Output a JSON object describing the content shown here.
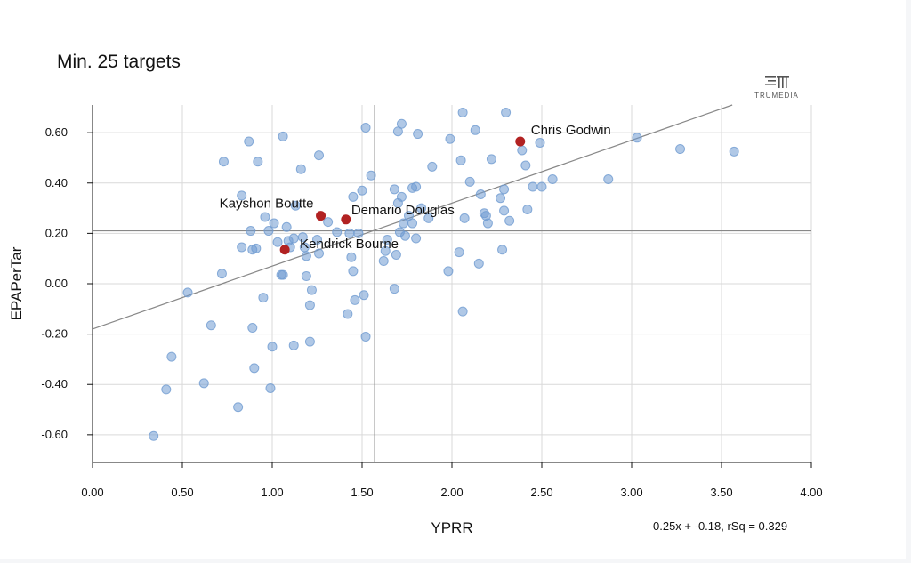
{
  "header": {
    "subtitle": "Min. 25 targets",
    "brand": "TRUMEDIA",
    "equation": "0.25x + -0.18, rSq = 0.329"
  },
  "colors": {
    "point": "#6f9bd1",
    "highlight": "#b22222",
    "grid": "#d9d9d9",
    "axis": "#111111",
    "refline": "#888888"
  },
  "chart_data": {
    "type": "scatter",
    "xlabel": "YPRR",
    "ylabel": "EPAPerTar",
    "xlim": [
      0,
      4
    ],
    "ylim": [
      -0.71,
      0.71
    ],
    "xticks": [
      "0.00",
      "0.50",
      "1.00",
      "1.50",
      "2.00",
      "2.50",
      "3.00",
      "3.50",
      "4.00"
    ],
    "yticks": [
      "0.60",
      "0.40",
      "0.20",
      "0.00",
      "-0.20",
      "-0.40",
      "-0.60"
    ],
    "grid": true,
    "reference_lines": {
      "x": 1.57,
      "y": 0.21
    },
    "trendline": {
      "slope": 0.25,
      "intercept": -0.18,
      "rsq": 0.329
    },
    "highlighted": [
      {
        "name": "Chris Godwin",
        "x": 2.38,
        "y": 0.565
      },
      {
        "name": "Kayshon Boutte",
        "x": 1.27,
        "y": 0.27
      },
      {
        "name": "Demario Douglas",
        "x": 1.41,
        "y": 0.255
      },
      {
        "name": "Kendrick Bourne",
        "x": 1.07,
        "y": 0.135
      }
    ],
    "points": [
      [
        0.34,
        -0.605
      ],
      [
        0.41,
        -0.42
      ],
      [
        0.44,
        -0.29
      ],
      [
        0.53,
        -0.035
      ],
      [
        0.62,
        -0.395
      ],
      [
        0.66,
        -0.165
      ],
      [
        0.72,
        0.04
      ],
      [
        0.73,
        0.485
      ],
      [
        0.81,
        -0.49
      ],
      [
        0.83,
        0.35
      ],
      [
        0.83,
        0.145
      ],
      [
        0.87,
        0.565
      ],
      [
        0.88,
        0.21
      ],
      [
        0.89,
        0.135
      ],
      [
        0.89,
        -0.175
      ],
      [
        0.9,
        -0.335
      ],
      [
        0.91,
        0.14
      ],
      [
        0.92,
        0.485
      ],
      [
        0.95,
        -0.055
      ],
      [
        0.96,
        0.265
      ],
      [
        0.98,
        0.21
      ],
      [
        0.99,
        -0.415
      ],
      [
        1.0,
        -0.25
      ],
      [
        1.01,
        0.24
      ],
      [
        1.03,
        0.165
      ],
      [
        1.05,
        0.035
      ],
      [
        1.06,
        0.035
      ],
      [
        1.06,
        0.585
      ],
      [
        1.08,
        0.225
      ],
      [
        1.09,
        0.17
      ],
      [
        1.1,
        0.145
      ],
      [
        1.12,
        -0.245
      ],
      [
        1.12,
        0.18
      ],
      [
        1.13,
        0.31
      ],
      [
        1.16,
        0.455
      ],
      [
        1.17,
        0.185
      ],
      [
        1.18,
        0.145
      ],
      [
        1.19,
        0.03
      ],
      [
        1.19,
        0.11
      ],
      [
        1.21,
        -0.085
      ],
      [
        1.21,
        -0.23
      ],
      [
        1.22,
        -0.025
      ],
      [
        1.25,
        0.175
      ],
      [
        1.26,
        0.12
      ],
      [
        1.26,
        0.51
      ],
      [
        1.31,
        0.245
      ],
      [
        1.36,
        0.205
      ],
      [
        1.42,
        -0.12
      ],
      [
        1.43,
        0.2
      ],
      [
        1.44,
        0.105
      ],
      [
        1.45,
        0.05
      ],
      [
        1.45,
        0.345
      ],
      [
        1.46,
        -0.065
      ],
      [
        1.48,
        0.2
      ],
      [
        1.5,
        0.37
      ],
      [
        1.51,
        -0.045
      ],
      [
        1.52,
        0.62
      ],
      [
        1.52,
        -0.21
      ],
      [
        1.55,
        0.43
      ],
      [
        1.62,
        0.09
      ],
      [
        1.63,
        0.13
      ],
      [
        1.64,
        0.175
      ],
      [
        1.68,
        0.375
      ],
      [
        1.68,
        -0.02
      ],
      [
        1.69,
        0.115
      ],
      [
        1.7,
        0.605
      ],
      [
        1.7,
        0.32
      ],
      [
        1.71,
        0.205
      ],
      [
        1.72,
        0.635
      ],
      [
        1.72,
        0.345
      ],
      [
        1.73,
        0.24
      ],
      [
        1.74,
        0.19
      ],
      [
        1.76,
        0.27
      ],
      [
        1.78,
        0.24
      ],
      [
        1.78,
        0.38
      ],
      [
        1.8,
        0.385
      ],
      [
        1.81,
        0.595
      ],
      [
        1.8,
        0.18
      ],
      [
        1.83,
        0.3
      ],
      [
        1.87,
        0.26
      ],
      [
        1.89,
        0.465
      ],
      [
        1.98,
        0.05
      ],
      [
        1.99,
        0.575
      ],
      [
        2.04,
        0.125
      ],
      [
        2.05,
        0.49
      ],
      [
        2.06,
        0.68
      ],
      [
        2.06,
        -0.11
      ],
      [
        2.07,
        0.26
      ],
      [
        2.1,
        0.405
      ],
      [
        2.13,
        0.61
      ],
      [
        2.15,
        0.08
      ],
      [
        2.16,
        0.355
      ],
      [
        2.18,
        0.28
      ],
      [
        2.19,
        0.27
      ],
      [
        2.2,
        0.24
      ],
      [
        2.22,
        0.495
      ],
      [
        2.27,
        0.34
      ],
      [
        2.28,
        0.135
      ],
      [
        2.29,
        0.375
      ],
      [
        2.29,
        0.29
      ],
      [
        2.3,
        0.68
      ],
      [
        2.32,
        0.25
      ],
      [
        2.39,
        0.53
      ],
      [
        2.41,
        0.47
      ],
      [
        2.42,
        0.295
      ],
      [
        2.45,
        0.385
      ],
      [
        2.49,
        0.56
      ],
      [
        2.5,
        0.385
      ],
      [
        2.56,
        0.415
      ],
      [
        2.87,
        0.415
      ],
      [
        3.03,
        0.58
      ],
      [
        3.27,
        0.535
      ],
      [
        3.57,
        0.525
      ]
    ]
  }
}
